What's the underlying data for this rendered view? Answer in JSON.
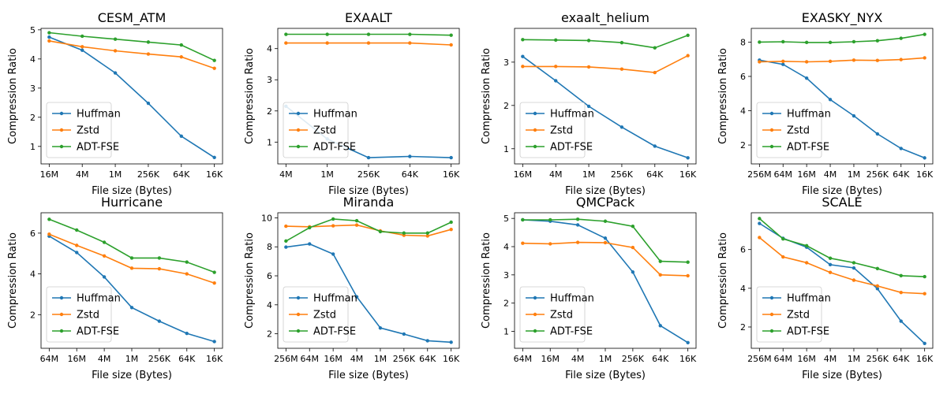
{
  "figure": {
    "xlabel": "File size (Bytes)",
    "ylabel": "Compression Ratio",
    "legend": [
      "Huffman",
      "Zstd",
      "ADT-FSE"
    ],
    "colors": {
      "Huffman": "#1f77b4",
      "Zstd": "#ff7f0e",
      "ADT-FSE": "#2ca02c"
    }
  },
  "chart_data": [
    {
      "type": "line",
      "title": "CESM_ATM",
      "xlabel": "File size (Bytes)",
      "ylabel": "Compression Ratio",
      "categories": [
        "16M",
        "4M",
        "1M",
        "256K",
        "64K",
        "16K"
      ],
      "ylim": [
        0.4,
        5.05
      ],
      "yticks": [
        1,
        2,
        3,
        4,
        5
      ],
      "legend_position": "lower-left",
      "series": [
        {
          "name": "Huffman",
          "values": [
            4.75,
            4.3,
            3.52,
            2.48,
            1.35,
            0.62
          ]
        },
        {
          "name": "Zstd",
          "values": [
            4.62,
            4.42,
            4.28,
            4.17,
            4.07,
            3.68
          ]
        },
        {
          "name": "ADT-FSE",
          "values": [
            4.9,
            4.78,
            4.68,
            4.58,
            4.48,
            3.95
          ]
        }
      ]
    },
    {
      "type": "line",
      "title": "EXAALT",
      "xlabel": "File size (Bytes)",
      "ylabel": "Compression Ratio",
      "categories": [
        "4M",
        "1M",
        "256K",
        "64K",
        "16K"
      ],
      "ylim": [
        0.3,
        4.65
      ],
      "yticks": [
        1,
        2,
        3,
        4
      ],
      "legend_position": "lower-left",
      "series": [
        {
          "name": "Huffman",
          "values": [
            2.15,
            1.1,
            0.5,
            0.54,
            0.5
          ]
        },
        {
          "name": "Zstd",
          "values": [
            4.18,
            4.18,
            4.18,
            4.18,
            4.12
          ]
        },
        {
          "name": "ADT-FSE",
          "values": [
            4.46,
            4.46,
            4.46,
            4.46,
            4.43
          ]
        }
      ]
    },
    {
      "type": "line",
      "title": "exaalt_helium",
      "xlabel": "File size (Bytes)",
      "ylabel": "Compression Ratio",
      "categories": [
        "16M",
        "4M",
        "1M",
        "256K",
        "64K",
        "16K"
      ],
      "ylim": [
        0.65,
        3.78
      ],
      "yticks": [
        1,
        2,
        3
      ],
      "legend_position": "lower-left",
      "series": [
        {
          "name": "Huffman",
          "values": [
            3.13,
            2.57,
            1.98,
            1.5,
            1.06,
            0.79
          ]
        },
        {
          "name": "Zstd",
          "values": [
            2.9,
            2.9,
            2.89,
            2.84,
            2.76,
            3.15
          ]
        },
        {
          "name": "ADT-FSE",
          "values": [
            3.52,
            3.51,
            3.5,
            3.45,
            3.33,
            3.62
          ]
        }
      ]
    },
    {
      "type": "line",
      "title": "EXASKY_NYX",
      "xlabel": "File size (Bytes)",
      "ylabel": "Compression Ratio",
      "categories": [
        "256M",
        "64M",
        "16M",
        "4M",
        "1M",
        "256K",
        "64K",
        "16K"
      ],
      "ylim": [
        0.9,
        8.8
      ],
      "yticks": [
        2,
        4,
        6,
        8
      ],
      "legend_position": "lower-left",
      "series": [
        {
          "name": "Huffman",
          "values": [
            6.95,
            6.7,
            5.9,
            4.65,
            3.7,
            2.65,
            1.8,
            1.25
          ]
        },
        {
          "name": "Zstd",
          "values": [
            6.85,
            6.88,
            6.85,
            6.88,
            6.95,
            6.93,
            6.98,
            7.08
          ]
        },
        {
          "name": "ADT-FSE",
          "values": [
            8.0,
            8.02,
            7.98,
            7.98,
            8.02,
            8.08,
            8.22,
            8.45
          ]
        }
      ]
    },
    {
      "type": "line",
      "title": "Hurricane",
      "xlabel": "File size (Bytes)",
      "ylabel": "Compression Ratio",
      "categories": [
        "64M",
        "16M",
        "4M",
        "1M",
        "256K",
        "64K",
        "16K"
      ],
      "ylim": [
        0.35,
        7.0
      ],
      "yticks": [
        2,
        4,
        6
      ],
      "legend_position": "lower-left",
      "series": [
        {
          "name": "Huffman",
          "values": [
            5.85,
            5.05,
            3.85,
            2.35,
            1.68,
            1.08,
            0.68
          ]
        },
        {
          "name": "Zstd",
          "values": [
            5.95,
            5.4,
            4.88,
            4.28,
            4.25,
            4.0,
            3.55
          ]
        },
        {
          "name": "ADT-FSE",
          "values": [
            6.68,
            6.15,
            5.55,
            4.78,
            4.78,
            4.58,
            4.08
          ]
        }
      ]
    },
    {
      "type": "line",
      "title": "Miranda",
      "xlabel": "File size (Bytes)",
      "ylabel": "Compression Ratio",
      "categories": [
        "256M",
        "64M",
        "16M",
        "4M",
        "1M",
        "256K",
        "64K",
        "16K"
      ],
      "ylim": [
        1.0,
        10.35
      ],
      "yticks": [
        2,
        4,
        6,
        8,
        10
      ],
      "legend_position": "lower-left",
      "series": [
        {
          "name": "Huffman",
          "values": [
            7.98,
            8.2,
            7.5,
            4.55,
            2.4,
            1.98,
            1.52,
            1.42
          ]
        },
        {
          "name": "Zstd",
          "values": [
            9.42,
            9.38,
            9.45,
            9.5,
            9.1,
            8.8,
            8.75,
            9.2
          ]
        },
        {
          "name": "ADT-FSE",
          "values": [
            8.4,
            9.32,
            9.92,
            9.8,
            9.05,
            8.95,
            8.95,
            9.7
          ]
        }
      ]
    },
    {
      "type": "line",
      "title": "QMCPack",
      "xlabel": "File size (Bytes)",
      "ylabel": "Compression Ratio",
      "categories": [
        "64M",
        "16M",
        "4M",
        "1M",
        "256K",
        "64K",
        "16K"
      ],
      "ylim": [
        0.4,
        5.2
      ],
      "yticks": [
        1,
        2,
        3,
        4,
        5
      ],
      "legend_position": "lower-left",
      "series": [
        {
          "name": "Huffman",
          "values": [
            4.95,
            4.9,
            4.77,
            4.3,
            3.1,
            1.2,
            0.6
          ]
        },
        {
          "name": "Zstd",
          "values": [
            4.12,
            4.1,
            4.15,
            4.14,
            3.97,
            3.0,
            2.97
          ]
        },
        {
          "name": "ADT-FSE",
          "values": [
            4.95,
            4.95,
            4.97,
            4.9,
            4.72,
            3.48,
            3.45
          ]
        }
      ]
    },
    {
      "type": "line",
      "title": "SCALE",
      "xlabel": "File size (Bytes)",
      "ylabel": "Compression Ratio",
      "categories": [
        "256M",
        "64M",
        "16M",
        "4M",
        "1M",
        "256K",
        "64K",
        "16K"
      ],
      "ylim": [
        0.9,
        7.9
      ],
      "yticks": [
        2,
        4,
        6
      ],
      "legend_position": "lower-left",
      "series": [
        {
          "name": "Huffman",
          "values": [
            7.35,
            6.58,
            6.12,
            5.22,
            5.05,
            3.98,
            2.3,
            1.15
          ]
        },
        {
          "name": "Zstd",
          "values": [
            6.62,
            5.62,
            5.32,
            4.82,
            4.42,
            4.12,
            3.78,
            3.72
          ]
        },
        {
          "name": "ADT-FSE",
          "values": [
            7.6,
            6.55,
            6.2,
            5.55,
            5.32,
            5.02,
            4.65,
            4.6
          ]
        }
      ]
    }
  ]
}
